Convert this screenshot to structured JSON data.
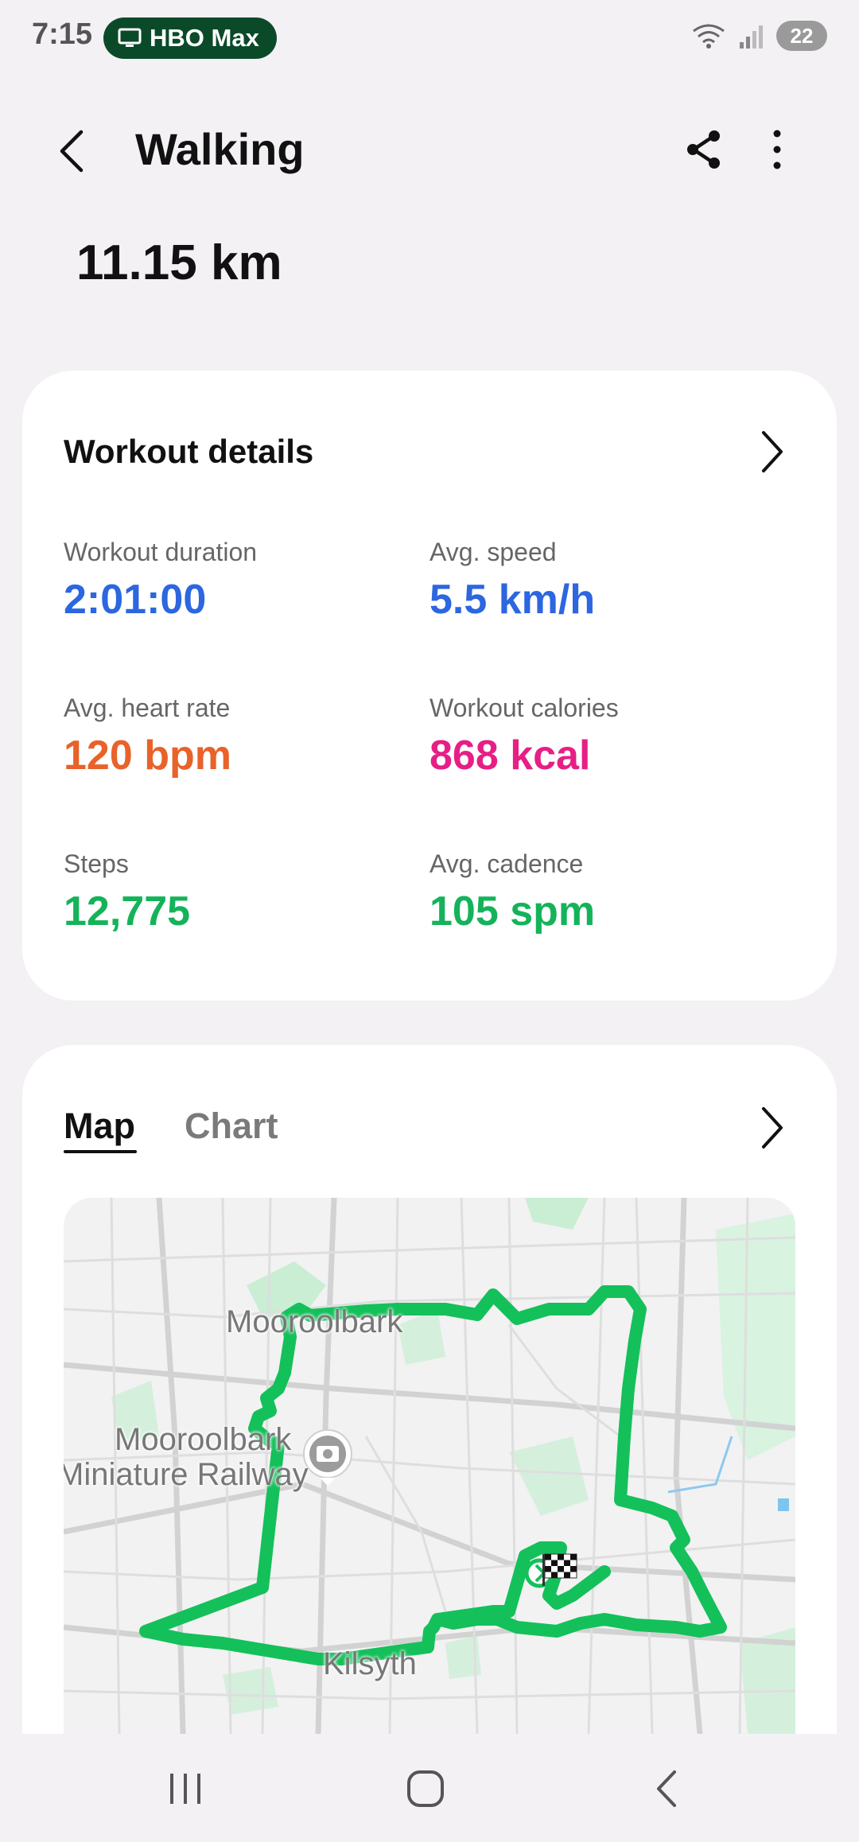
{
  "status_bar": {
    "time": "7:15",
    "pill_label": "HBO Max",
    "battery": "22"
  },
  "header": {
    "title": "Walking"
  },
  "distance": "11.15 km",
  "workout_details": {
    "title": "Workout details",
    "stats": [
      {
        "label": "Workout duration",
        "value": "2:01:00",
        "color": "#2c66e0"
      },
      {
        "label": "Avg. speed",
        "value": "5.5 km/h",
        "color": "#2c66e0"
      },
      {
        "label": "Avg. heart rate",
        "value": "120 bpm",
        "color": "#e8622a"
      },
      {
        "label": "Workout calories",
        "value": "868 kcal",
        "color": "#e61f86"
      },
      {
        "label": "Steps",
        "value": "12,775",
        "color": "#14b35a"
      },
      {
        "label": "Avg. cadence",
        "value": "105 spm",
        "color": "#14b35a"
      }
    ]
  },
  "map_section": {
    "tabs": [
      {
        "label": "Map",
        "active": true
      },
      {
        "label": "Chart",
        "active": false
      }
    ],
    "map_labels": {
      "mooroolbark": "Mooroolbark",
      "railway_line1": "Mooroolbark",
      "railway_line2": "Miniature Railway",
      "kilsyth": "Kilsyth"
    },
    "route_color": "#14c05a"
  },
  "icons": [
    "back-icon",
    "share-icon",
    "more-icon",
    "chevron-right-icon",
    "camera-pin-icon",
    "finish-flag-icon",
    "recents-icon",
    "home-icon",
    "nav-back-icon"
  ]
}
